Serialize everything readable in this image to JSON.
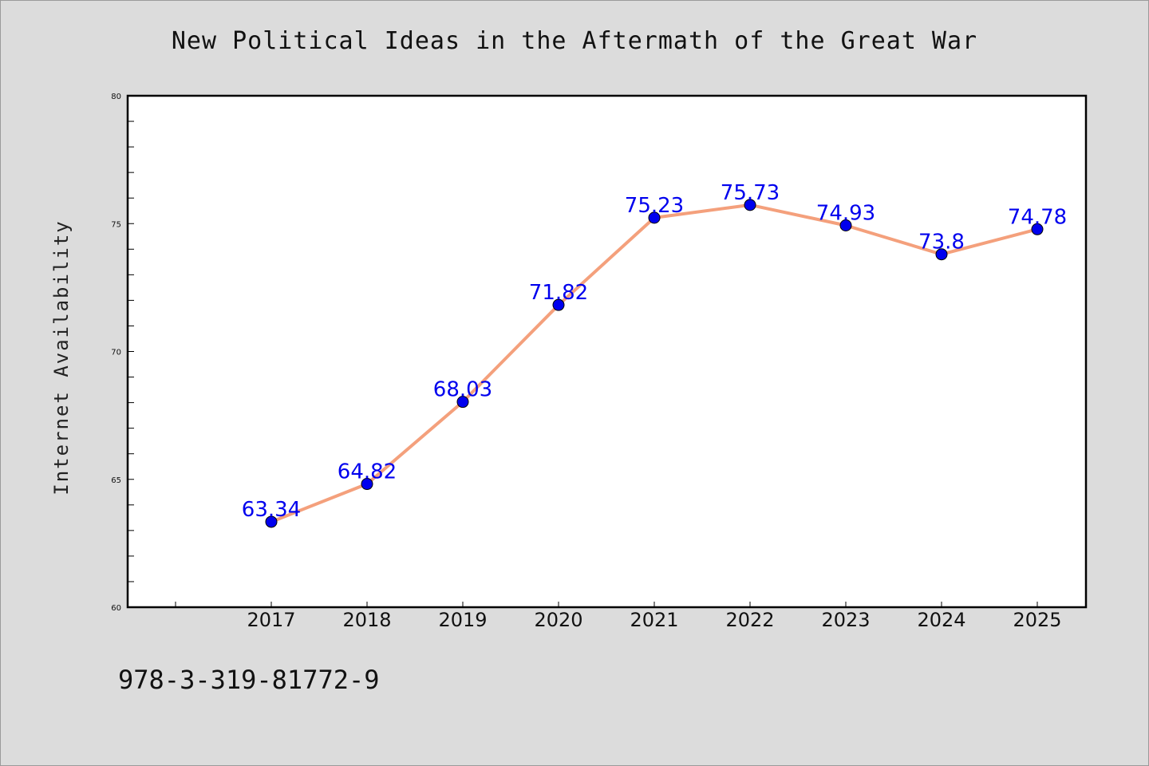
{
  "chart_data": {
    "type": "line",
    "title": "New Political Ideas in the Aftermath of the Great War",
    "ylabel": "Internet Availability",
    "xlabel": "",
    "categories": [
      "2017",
      "2018",
      "2019",
      "2020",
      "2021",
      "2022",
      "2023",
      "2024",
      "2025"
    ],
    "series": [
      {
        "values": [
          63.34,
          64.82,
          68.03,
          71.82,
          75.23,
          75.73,
          74.93,
          73.8,
          74.78
        ],
        "labels": [
          "63.34",
          "64.82",
          "68.03",
          "71.82",
          "75.23",
          "75.73",
          "74.93",
          "73.8",
          "74.78"
        ]
      }
    ],
    "ylim": [
      60,
      80
    ],
    "yticks": [
      "60",
      "65",
      "70",
      "75",
      "80"
    ],
    "grid": false,
    "line_color": "#f4a07c",
    "marker_color": "#0000ee",
    "label_color": "#0000ee"
  },
  "footer": {
    "code": "978-3-319-81772-9"
  }
}
